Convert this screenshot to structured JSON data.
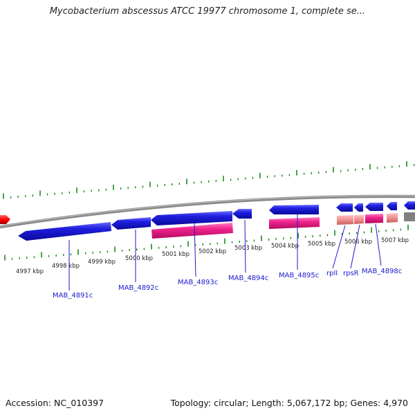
{
  "title": "Mycobacterium abscessus ATCC 19977 chromosome 1, complete se...",
  "footer": {
    "accession": "Accession: NC_010397",
    "topology": "Topology: circular; Length: 5,067,172 bp; Genes: 4,970"
  },
  "colors": {
    "forward_gene": "#1f1fe0",
    "rna_gene": "#f0218c",
    "pseudo_gene": "#f09090",
    "highlight": "#ff0000",
    "backbone": "#8a8a8a",
    "tick": "#1a8a1a"
  },
  "scale": {
    "unit": "kbp",
    "labels": [
      "4997 kbp",
      "4998 kbp",
      "4999 kbp",
      "5000 kbp",
      "5001 kbp",
      "5002 kbp",
      "5003 kbp",
      "5004 kbp",
      "5005 kbp",
      "5006 kbp",
      "5007 kbp"
    ]
  },
  "gene_labels": [
    "MAB_4891c",
    "MAB_4892c",
    "MAB_4893c",
    "MAB_4894c",
    "MAB_4895c",
    "rplI",
    "rpsR",
    "MAB_4898c"
  ]
}
